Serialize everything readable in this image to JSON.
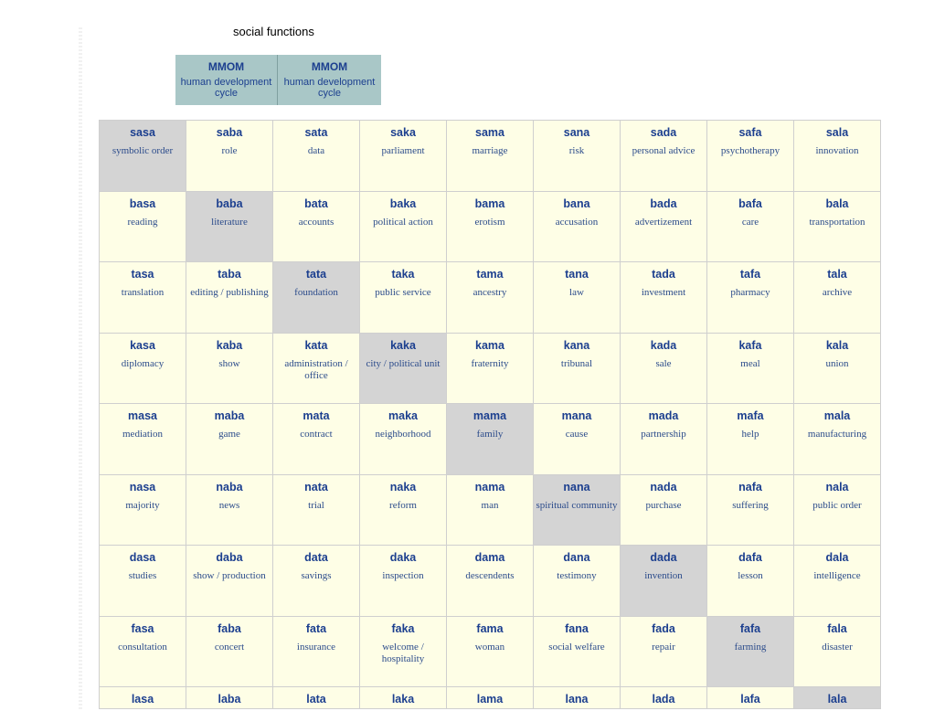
{
  "section": {
    "title": "social functions"
  },
  "header": [
    {
      "code": "MMOM",
      "label": "human development cycle"
    },
    {
      "code": "MMOM",
      "label": "human development cycle"
    }
  ],
  "grid": {
    "rows": [
      [
        {
          "word": "sasa",
          "meaning": "symbolic order"
        },
        {
          "word": "saba",
          "meaning": "role"
        },
        {
          "word": "sata",
          "meaning": "data"
        },
        {
          "word": "saka",
          "meaning": "parliament"
        },
        {
          "word": "sama",
          "meaning": "marriage"
        },
        {
          "word": "sana",
          "meaning": "risk"
        },
        {
          "word": "sada",
          "meaning": "personal advice"
        },
        {
          "word": "safa",
          "meaning": "psychotherapy"
        },
        {
          "word": "sala",
          "meaning": "innovation"
        }
      ],
      [
        {
          "word": "basa",
          "meaning": "reading"
        },
        {
          "word": "baba",
          "meaning": "literature"
        },
        {
          "word": "bata",
          "meaning": "accounts"
        },
        {
          "word": "baka",
          "meaning": "political action"
        },
        {
          "word": "bama",
          "meaning": "erotism"
        },
        {
          "word": "bana",
          "meaning": "accusation"
        },
        {
          "word": "bada",
          "meaning": "advertizement"
        },
        {
          "word": "bafa",
          "meaning": "care"
        },
        {
          "word": "bala",
          "meaning": "transportation"
        }
      ],
      [
        {
          "word": "tasa",
          "meaning": "translation"
        },
        {
          "word": "taba",
          "meaning": "editing / publishing"
        },
        {
          "word": "tata",
          "meaning": "foundation"
        },
        {
          "word": "taka",
          "meaning": "public service"
        },
        {
          "word": "tama",
          "meaning": "ancestry"
        },
        {
          "word": "tana",
          "meaning": "law"
        },
        {
          "word": "tada",
          "meaning": "investment"
        },
        {
          "word": "tafa",
          "meaning": "pharmacy"
        },
        {
          "word": "tala",
          "meaning": "archive"
        }
      ],
      [
        {
          "word": "kasa",
          "meaning": "diplomacy"
        },
        {
          "word": "kaba",
          "meaning": "show"
        },
        {
          "word": "kata",
          "meaning": "administration / office"
        },
        {
          "word": "kaka",
          "meaning": "city / political unit"
        },
        {
          "word": "kama",
          "meaning": "fraternity"
        },
        {
          "word": "kana",
          "meaning": "tribunal"
        },
        {
          "word": "kada",
          "meaning": "sale"
        },
        {
          "word": "kafa",
          "meaning": "meal"
        },
        {
          "word": "kala",
          "meaning": "union"
        }
      ],
      [
        {
          "word": "masa",
          "meaning": "mediation"
        },
        {
          "word": "maba",
          "meaning": "game"
        },
        {
          "word": "mata",
          "meaning": "contract"
        },
        {
          "word": "maka",
          "meaning": "neighborhood"
        },
        {
          "word": "mama",
          "meaning": "family"
        },
        {
          "word": "mana",
          "meaning": "cause"
        },
        {
          "word": "mada",
          "meaning": "partnership"
        },
        {
          "word": "mafa",
          "meaning": "help"
        },
        {
          "word": "mala",
          "meaning": "manufacturing"
        }
      ],
      [
        {
          "word": "nasa",
          "meaning": "majority"
        },
        {
          "word": "naba",
          "meaning": "news"
        },
        {
          "word": "nata",
          "meaning": "trial"
        },
        {
          "word": "naka",
          "meaning": "reform"
        },
        {
          "word": "nama",
          "meaning": "man"
        },
        {
          "word": "nana",
          "meaning": "spiritual community"
        },
        {
          "word": "nada",
          "meaning": "purchase"
        },
        {
          "word": "nafa",
          "meaning": "suffering"
        },
        {
          "word": "nala",
          "meaning": "public order"
        }
      ],
      [
        {
          "word": "dasa",
          "meaning": "studies"
        },
        {
          "word": "daba",
          "meaning": "show / production"
        },
        {
          "word": "data",
          "meaning": "savings"
        },
        {
          "word": "daka",
          "meaning": "inspection"
        },
        {
          "word": "dama",
          "meaning": "descendents"
        },
        {
          "word": "dana",
          "meaning": "testimony"
        },
        {
          "word": "dada",
          "meaning": "invention"
        },
        {
          "word": "dafa",
          "meaning": "lesson"
        },
        {
          "word": "dala",
          "meaning": "intelligence"
        }
      ],
      [
        {
          "word": "fasa",
          "meaning": "consultation"
        },
        {
          "word": "faba",
          "meaning": "concert"
        },
        {
          "word": "fata",
          "meaning": "insurance"
        },
        {
          "word": "faka",
          "meaning": "welcome / hospitality"
        },
        {
          "word": "fama",
          "meaning": "woman"
        },
        {
          "word": "fana",
          "meaning": "social welfare"
        },
        {
          "word": "fada",
          "meaning": "repair"
        },
        {
          "word": "fafa",
          "meaning": "farming"
        },
        {
          "word": "fala",
          "meaning": "disaster"
        }
      ],
      [
        {
          "word": "lasa",
          "meaning": ""
        },
        {
          "word": "laba",
          "meaning": ""
        },
        {
          "word": "lata",
          "meaning": ""
        },
        {
          "word": "laka",
          "meaning": ""
        },
        {
          "word": "lama",
          "meaning": ""
        },
        {
          "word": "lana",
          "meaning": ""
        },
        {
          "word": "lada",
          "meaning": ""
        },
        {
          "word": "lafa",
          "meaning": ""
        },
        {
          "word": "lala",
          "meaning": ""
        }
      ]
    ]
  }
}
